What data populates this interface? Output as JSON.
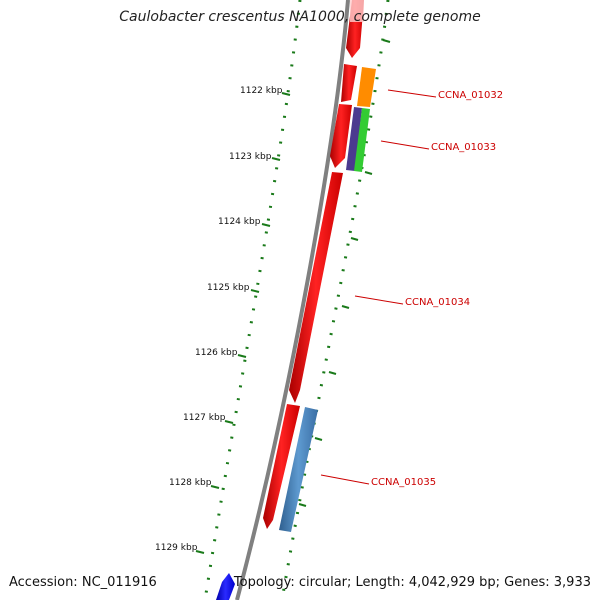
{
  "title": "Caulobacter crescentus NA1000, complete genome",
  "footer": {
    "accession_label": "Accession:",
    "accession": "NC_011916",
    "topology_text": "Topology: circular; Length: 4,042,929 bp; Genes: 3,933"
  },
  "colors": {
    "backbone": "#808080",
    "tick": "#1a7a1a",
    "gene_label": "#cc0000",
    "forward_gene": "#ee1111",
    "reverse_gene": "#0000ee"
  },
  "ruler": {
    "unit": "kbp",
    "labels": [
      "1122 kbp",
      "1123 kbp",
      "1124 kbp",
      "1125 kbp",
      "1126 kbp",
      "1127 kbp",
      "1128 kbp",
      "1129 kbp"
    ],
    "values": [
      1122,
      1123,
      1124,
      1125,
      1126,
      1127,
      1128,
      1129
    ]
  },
  "genes": [
    {
      "label": "CCNA_01032",
      "strand": "reverse",
      "color": "#ff8c00"
    },
    {
      "label": "CCNA_01033",
      "strand": "reverse",
      "color": "#33cc33"
    },
    {
      "label": "CCNA_01034",
      "strand": "forward",
      "color": "#ee1111"
    },
    {
      "label": "CCNA_01035",
      "strand": "reverse",
      "color": "#4682b4"
    }
  ]
}
